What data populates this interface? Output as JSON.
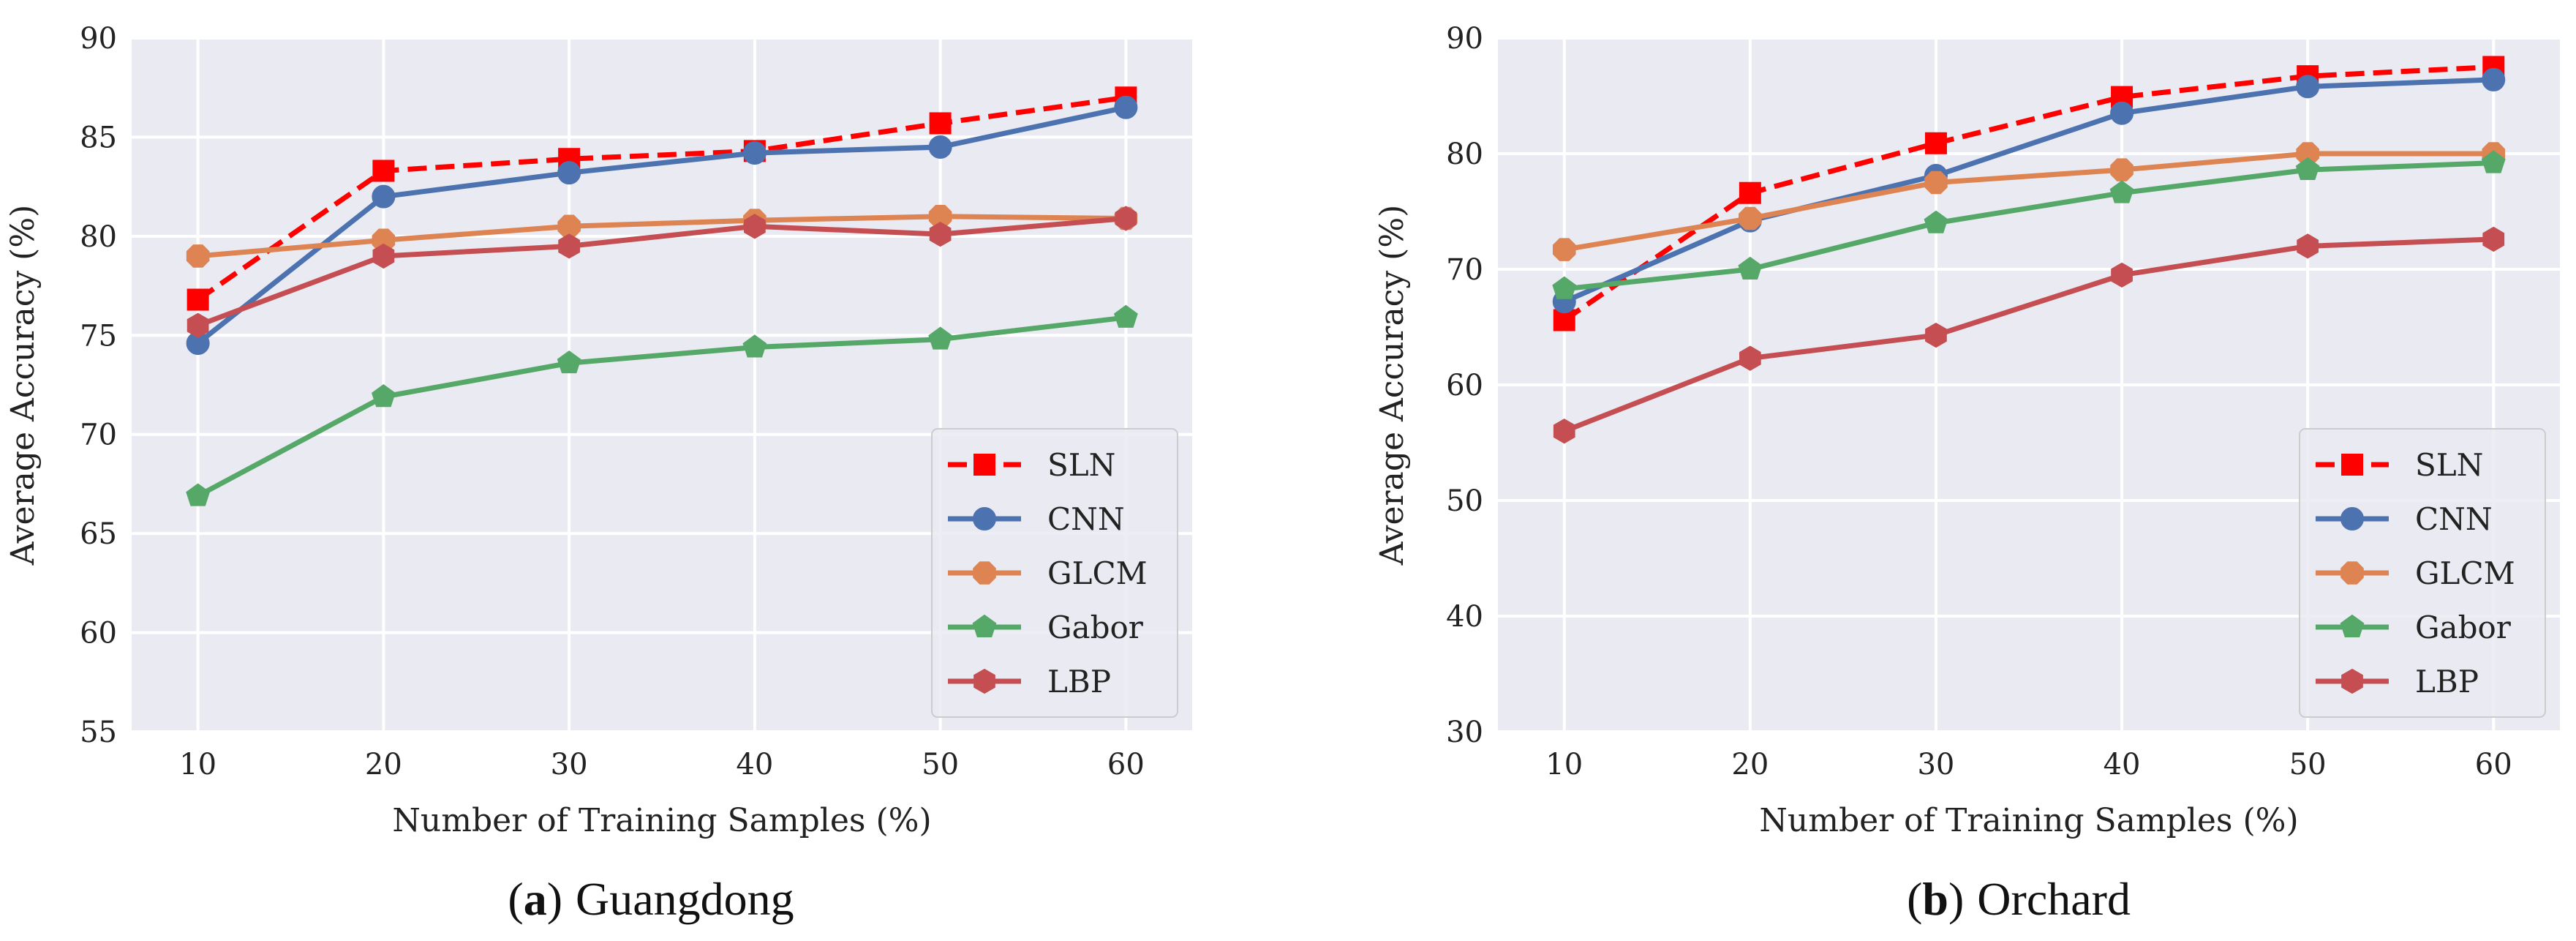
{
  "chart_data": [
    {
      "type": "line",
      "caption_letter": "a",
      "caption_paren_open": "(",
      "caption_paren_close": ")",
      "caption_name": "Guangdong",
      "xlabel": "Number of Training Samples (%)",
      "ylabel": "Average Accuracy (%)",
      "x": [
        10,
        20,
        30,
        40,
        50,
        60
      ],
      "xticks": [
        "10",
        "20",
        "30",
        "40",
        "50",
        "60"
      ],
      "ylim": [
        55,
        90
      ],
      "yticks": [
        "55",
        "60",
        "65",
        "70",
        "75",
        "80",
        "85",
        "90"
      ],
      "legend_position": "bottom-right",
      "series": [
        {
          "name": "SLN",
          "color": "#ff0000",
          "marker": "square",
          "dashed": true,
          "values": [
            76.8,
            83.3,
            83.9,
            84.3,
            85.7,
            87.0
          ]
        },
        {
          "name": "CNN",
          "color": "#4c72b0",
          "marker": "circle",
          "dashed": false,
          "values": [
            74.6,
            82.0,
            83.2,
            84.2,
            84.5,
            86.5
          ]
        },
        {
          "name": "GLCM",
          "color": "#dd8452",
          "marker": "octagon",
          "dashed": false,
          "values": [
            79.0,
            79.8,
            80.5,
            80.8,
            81.0,
            80.9
          ]
        },
        {
          "name": "Gabor",
          "color": "#55a868",
          "marker": "pentagon",
          "dashed": false,
          "values": [
            66.9,
            71.9,
            73.6,
            74.4,
            74.8,
            75.9
          ]
        },
        {
          "name": "LBP",
          "color": "#c44e52",
          "marker": "hexagon",
          "dashed": false,
          "values": [
            75.5,
            79.0,
            79.5,
            80.5,
            80.1,
            80.9
          ]
        }
      ]
    },
    {
      "type": "line",
      "caption_letter": "b",
      "caption_paren_open": "(",
      "caption_paren_close": ")",
      "caption_name": "Orchard",
      "xlabel": "Number of Training Samples (%)",
      "ylabel": "Average Accuracy (%)",
      "x": [
        10,
        20,
        30,
        40,
        50,
        60
      ],
      "xticks": [
        "10",
        "20",
        "30",
        "40",
        "50",
        "60"
      ],
      "ylim": [
        30,
        90
      ],
      "yticks": [
        "30",
        "40",
        "50",
        "60",
        "70",
        "80",
        "90"
      ],
      "legend_position": "bottom-right",
      "series": [
        {
          "name": "SLN",
          "color": "#ff0000",
          "marker": "square",
          "dashed": true,
          "values": [
            65.6,
            76.6,
            80.9,
            84.9,
            86.7,
            87.5
          ]
        },
        {
          "name": "CNN",
          "color": "#4c72b0",
          "marker": "circle",
          "dashed": false,
          "values": [
            67.2,
            74.2,
            78.1,
            83.5,
            85.8,
            86.4
          ]
        },
        {
          "name": "GLCM",
          "color": "#dd8452",
          "marker": "octagon",
          "dashed": false,
          "values": [
            71.7,
            74.4,
            77.5,
            78.6,
            80.0,
            80.0
          ]
        },
        {
          "name": "Gabor",
          "color": "#55a868",
          "marker": "pentagon",
          "dashed": false,
          "values": [
            68.3,
            70.0,
            74.0,
            76.6,
            78.6,
            79.2
          ]
        },
        {
          "name": "LBP",
          "color": "#c44e52",
          "marker": "hexagon",
          "dashed": false,
          "values": [
            56.0,
            62.3,
            64.3,
            69.5,
            72.0,
            72.6
          ]
        }
      ]
    }
  ]
}
